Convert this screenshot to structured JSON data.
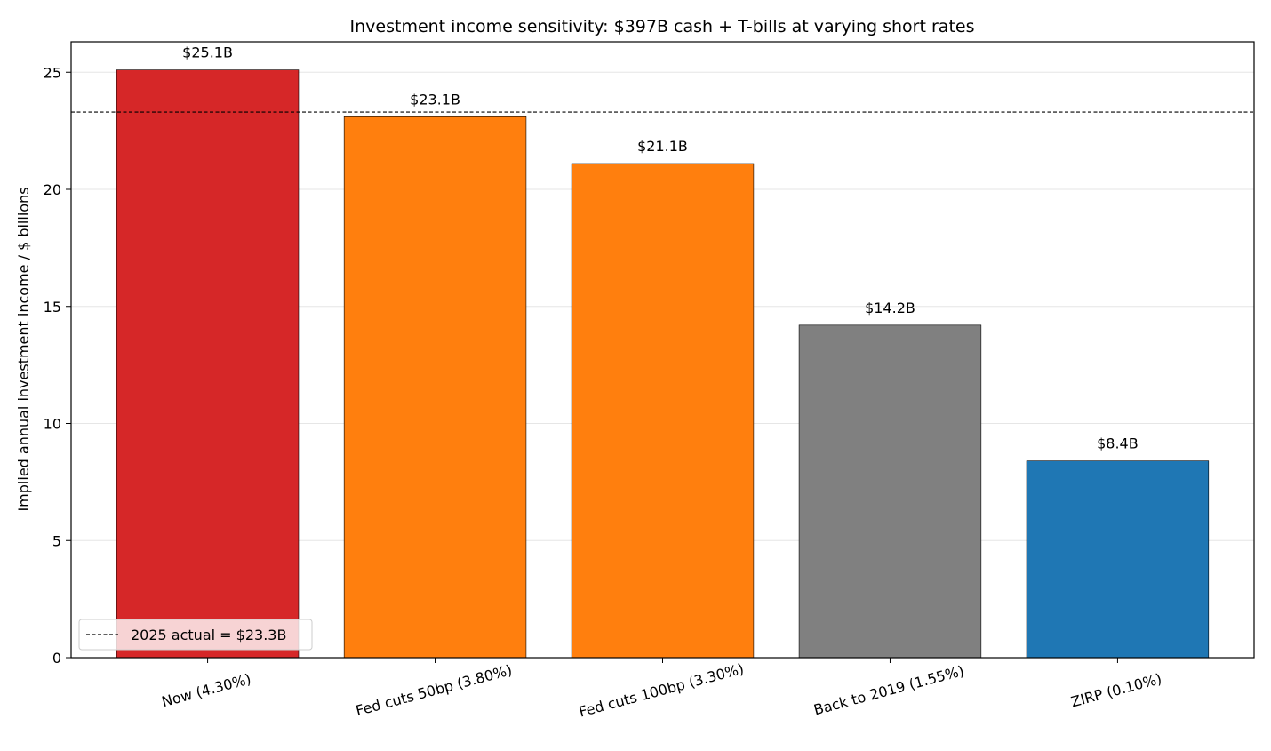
{
  "chart_data": {
    "type": "bar",
    "title": "Investment income sensitivity: $397B cash + T-bills at varying short rates",
    "xlabel": "",
    "ylabel": "Implied annual investment income / $ billions",
    "categories": [
      "Now (4.30%)",
      "Fed cuts 50bp (3.80%)",
      "Fed cuts 100bp (3.30%)",
      "Back to 2019 (1.55%)",
      "ZIRP (0.10%)"
    ],
    "values": [
      25.1,
      23.1,
      21.1,
      14.2,
      8.4
    ],
    "data_labels": [
      "$25.1B",
      "$23.1B",
      "$21.1B",
      "$14.2B",
      "$8.4B"
    ],
    "colors": [
      "#d62728",
      "#ff7f0e",
      "#ff7f0e",
      "#808080",
      "#1f77b4"
    ],
    "ylim": [
      0,
      26.3
    ],
    "yticks": [
      0,
      5,
      10,
      15,
      20,
      25
    ],
    "grid": "horizontal",
    "reference_line": {
      "value": 23.3,
      "label": "2025 actual = $23.3B",
      "style": "dashed",
      "color": "#000000"
    },
    "legend_placement": "lower-left"
  }
}
